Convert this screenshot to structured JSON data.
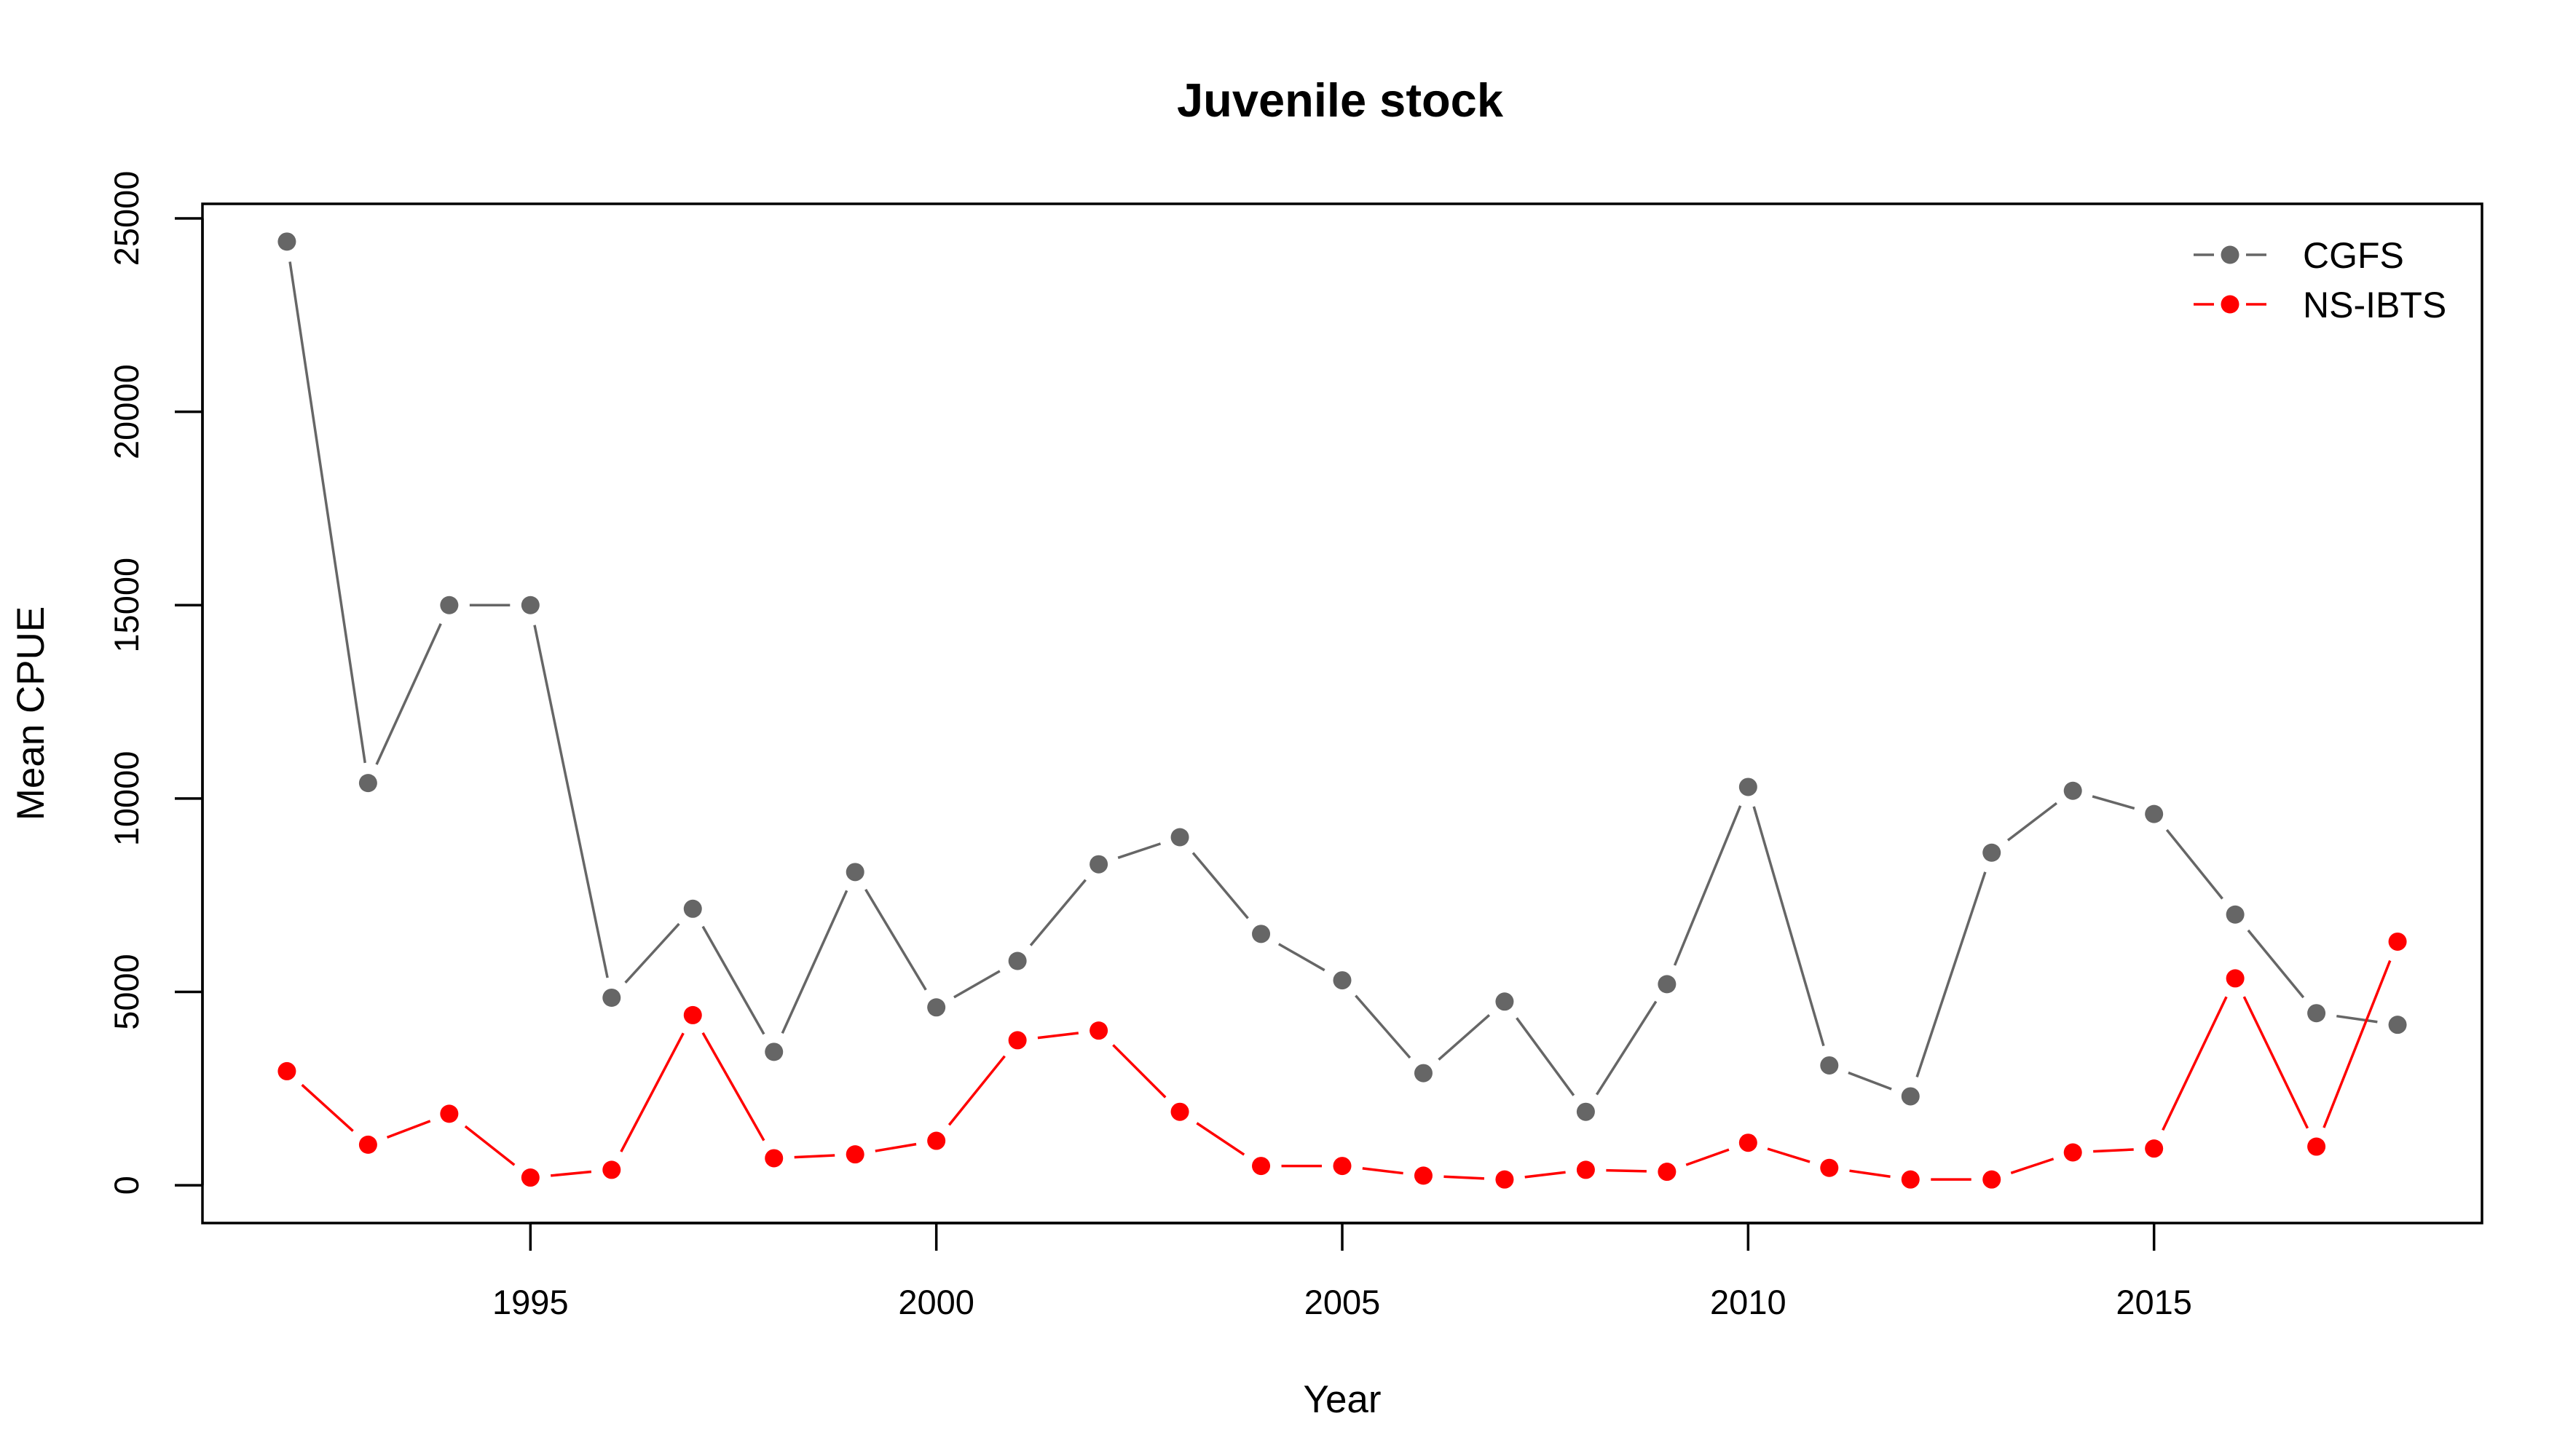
{
  "chart_data": {
    "type": "line",
    "title": "Juvenile stock",
    "xlabel": "Year",
    "ylabel": "Mean CPUE",
    "x": [
      1992,
      1993,
      1994,
      1995,
      1996,
      1997,
      1998,
      1999,
      2000,
      2001,
      2002,
      2003,
      2004,
      2005,
      2006,
      2007,
      2008,
      2009,
      2010,
      2011,
      2012,
      2013,
      2014,
      2015,
      2016,
      2017,
      2018
    ],
    "xticks": [
      1995,
      2000,
      2005,
      2010,
      2015
    ],
    "xtick_labels": [
      "1995",
      "2000",
      "2005",
      "2010",
      "2015"
    ],
    "yticks": [
      0,
      5000,
      10000,
      15000,
      20000,
      25000
    ],
    "ytick_labels": [
      "0",
      "5000",
      "10000",
      "15000",
      "20000",
      "25000"
    ],
    "xlim": [
      1990.96,
      2019.04
    ],
    "ylim": [
      -976,
      25376
    ],
    "grid": false,
    "legend_position": "top-right",
    "series": [
      {
        "name": "CGFS",
        "color": "#666666",
        "values": [
          24400,
          10400,
          15000,
          15000,
          4850,
          7150,
          3450,
          8100,
          4600,
          5800,
          8300,
          9000,
          6500,
          5300,
          2900,
          4750,
          1900,
          5200,
          10300,
          3100,
          2300,
          8600,
          10200,
          9600,
          7000,
          4450,
          4150
        ]
      },
      {
        "name": "NS-IBTS",
        "color": "#ff0000",
        "values": [
          2950,
          1050,
          1850,
          200,
          400,
          4400,
          700,
          800,
          1150,
          3750,
          4000,
          1900,
          500,
          500,
          250,
          150,
          400,
          350,
          1100,
          450,
          150,
          150,
          850,
          950,
          5350,
          1000,
          6300
        ]
      }
    ]
  }
}
